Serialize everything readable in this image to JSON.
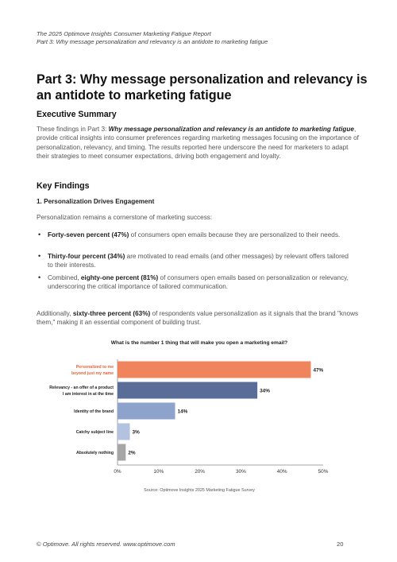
{
  "header": {
    "line1": "The 2025 Optimove Insights Consumer Marketing Fatigue Report",
    "line2": "Part 3: Why message personalization and relevancy is an antidote to marketing fatigue"
  },
  "title": "Part 3: Why message personalization and relevancy is an antidote to marketing fatigue",
  "executive_summary": {
    "heading": "Executive Summary",
    "intro": "These findings in Part 3: ",
    "emph": "Why message personalization and relevancy is an antidote to marketing fatigue",
    "rest": ", provide critical insights into consumer preferences regarding marketing messages focusing on the importance of personalization, relevancy, and timing. The results reported here underscore the need for marketers to adapt their strategies to meet consumer expectations, driving both engagement and loyalty."
  },
  "key_findings": {
    "heading": "Key Findings",
    "subheading": "1. Personalization Drives Engagement",
    "lead": "Personalization remains a cornerstone of marketing success:",
    "bullets": [
      {
        "pre": "",
        "bold": "Forty-seven percent (47%)",
        "post": " of consumers open emails because they are personalized to their needs."
      },
      {
        "pre": "",
        "bold": "Thirty-four percent (34%)",
        "post": " are motivated to read emails (and other messages) by relevant offers tailored to their interests."
      },
      {
        "pre": "Combined, ",
        "bold": "eighty-one percent (81%)",
        "post": " of consumers open emails based on personalization or relevancy, underscoring the critical importance of tailored communication."
      }
    ],
    "closing_pre": "Additionally, ",
    "closing_bold": "sixty-three percent (63%)",
    "closing_post": " of respondents value personalization as it signals that the brand \"knows them,\" making it an essential component of building trust."
  },
  "chart_title": "What is the number 1 thing that will make you open a marketing email?",
  "chart_data": {
    "type": "bar",
    "orientation": "horizontal",
    "categories": [
      [
        "Personalized to me",
        "beyond just my name"
      ],
      [
        "Relevancy - an offer of a product",
        "I am interest in at the time"
      ],
      [
        "Identity of the brand"
      ],
      [
        "Catchy subject line"
      ],
      [
        "Absolutely nothing"
      ]
    ],
    "values": [
      47,
      34,
      14,
      3,
      2
    ],
    "value_labels": [
      "47%",
      "34%",
      "14%",
      "3%",
      "2%"
    ],
    "colors": [
      "#f0845c",
      "#5a6d99",
      "#8ea3cc",
      "#b3c2de",
      "#a6a6a6"
    ],
    "label_colors": [
      "#e8663b",
      "#222222",
      "#222222",
      "#222222",
      "#222222"
    ],
    "xlim": [
      0,
      50
    ],
    "xticks": [
      "0%",
      "10%",
      "20%",
      "30%",
      "40%",
      "50%"
    ],
    "grid": false
  },
  "source": "Source: Optimove Insights 2025 Marketing Fatigue Survey",
  "footer": {
    "left": "© Optimove. All rights reserved. www.optimove.com",
    "page": "20"
  }
}
